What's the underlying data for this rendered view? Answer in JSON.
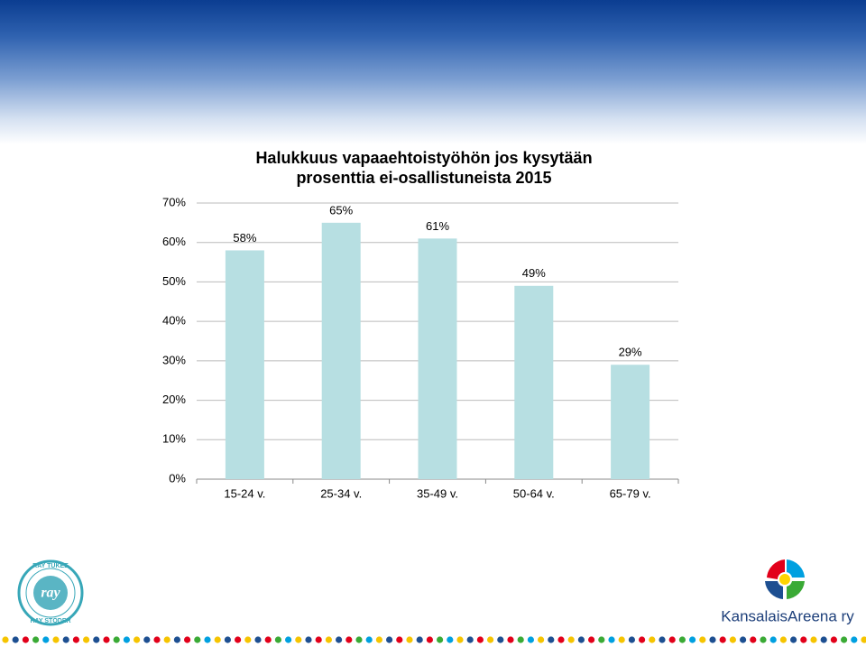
{
  "chart_data": {
    "type": "bar",
    "title": "Halukkuus vapaaehtoistyöhön jos kysytään prosenttia ei-osallistuneista 2015",
    "categories": [
      "15-24 v.",
      "25-34 v.",
      "35-49 v.",
      "50-64 v.",
      "65-79 v."
    ],
    "values": [
      58,
      65,
      61,
      49,
      29
    ],
    "value_labels": [
      "58%",
      "65%",
      "61%",
      "49%",
      "29%"
    ],
    "color": "#b7dfe2",
    "ylim": [
      0,
      70
    ],
    "yticks": [
      {
        "value": 0,
        "label": "0%"
      },
      {
        "value": 10,
        "label": "10%"
      },
      {
        "value": 20,
        "label": "20%"
      },
      {
        "value": 30,
        "label": "30%"
      },
      {
        "value": 40,
        "label": "40%"
      },
      {
        "value": 50,
        "label": "50%"
      },
      {
        "value": 60,
        "label": "60%"
      },
      {
        "value": 70,
        "label": "70%"
      }
    ],
    "grid": true
  },
  "logos": {
    "ray_top": "RAY TUKEE",
    "ray_bottom": "RAY STÖDER",
    "ray_center": "ray",
    "kansalaisareena": "KansalaisAreena ry"
  }
}
